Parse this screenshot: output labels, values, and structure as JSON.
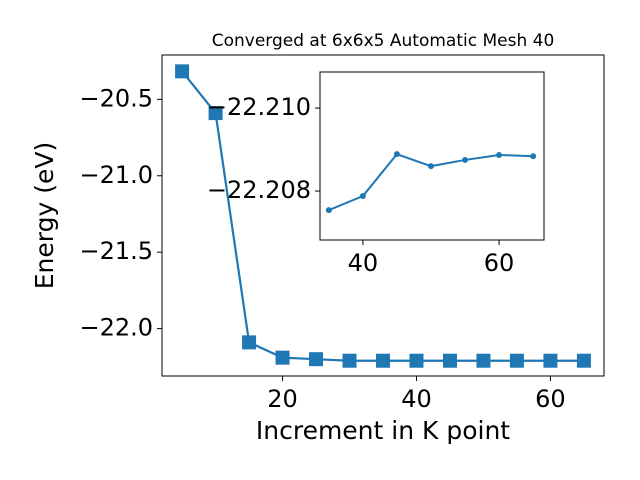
{
  "chart_data": [
    {
      "type": "line",
      "title": "Converged at 6x6x5 Automatic Mesh 40",
      "xlabel": "Increment in K point",
      "ylabel": "Energy (eV)",
      "x": [
        5,
        10,
        15,
        20,
        25,
        30,
        35,
        40,
        45,
        50,
        55,
        60,
        65
      ],
      "values": [
        -20.317,
        -20.59,
        -22.09,
        -22.19,
        -22.2,
        -22.21,
        -22.21,
        -22.21,
        -22.21,
        -22.21,
        -22.21,
        -22.21,
        -22.21
      ],
      "color": "#1f77b4",
      "marker": "square",
      "xlim": [
        2,
        68
      ],
      "xticks": [
        20,
        40,
        60
      ],
      "ylim": [
        -22.31,
        -20.21
      ],
      "yticks": [
        {
          "value": -22.0,
          "label": "−22.0"
        },
        {
          "value": -21.5,
          "label": "−21.5"
        },
        {
          "value": -21.0,
          "label": "−21.0"
        },
        {
          "value": -20.5,
          "label": "−20.5"
        }
      ]
    },
    {
      "type": "line",
      "x": [
        35,
        40,
        45,
        50,
        55,
        60,
        65
      ],
      "values": [
        -22.20754,
        -22.20788,
        -22.20889,
        -22.2086,
        -22.20875,
        -22.20887,
        -22.20884
      ],
      "color": "#1f77b4",
      "marker": "circle",
      "xlim": [
        33.7,
        66.6
      ],
      "xticks": [
        40,
        60
      ],
      "ylim": [
        -22.20682,
        -22.21087
      ],
      "yticks": [
        {
          "value": -22.208,
          "label": "−22.208"
        },
        {
          "value": -22.21,
          "label": "−22.210"
        }
      ]
    }
  ]
}
